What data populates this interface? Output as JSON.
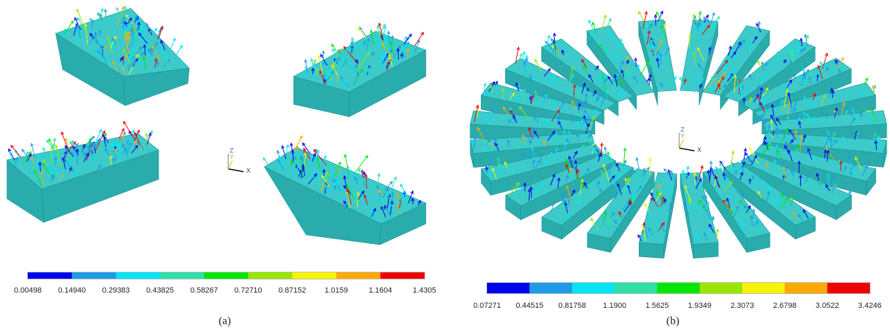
{
  "panels": [
    {
      "label": "(a)",
      "colorbar": {
        "labels": [
          "0.00498",
          "0.14940",
          "0.29383",
          "0.43825",
          "0.58267",
          "0.72710",
          "0.87152",
          "1.0159",
          "1.1604",
          "1.4305"
        ],
        "colors": [
          "#0000f0",
          "#1e9be6",
          "#00e6f5",
          "#2ee0a8",
          "#00e600",
          "#9ae600",
          "#f5f500",
          "#ffaa00",
          "#f00000"
        ]
      },
      "axes": {
        "x": "X",
        "y": "Y",
        "z": "Z"
      }
    },
    {
      "label": "(b)",
      "colorbar": {
        "labels": [
          "0.07271",
          "0.44515",
          "0.81758",
          "1.1900",
          "1.5625",
          "1.9349",
          "2.3073",
          "2.6798",
          "3.0522",
          "3.4246"
        ],
        "colors": [
          "#0000f0",
          "#1e9be6",
          "#00e6f5",
          "#2ee0a8",
          "#00e600",
          "#9ae600",
          "#f5f500",
          "#ffaa00",
          "#f00000"
        ]
      },
      "axes": {
        "x": "X",
        "y": "Y",
        "z": "Z"
      }
    }
  ]
}
